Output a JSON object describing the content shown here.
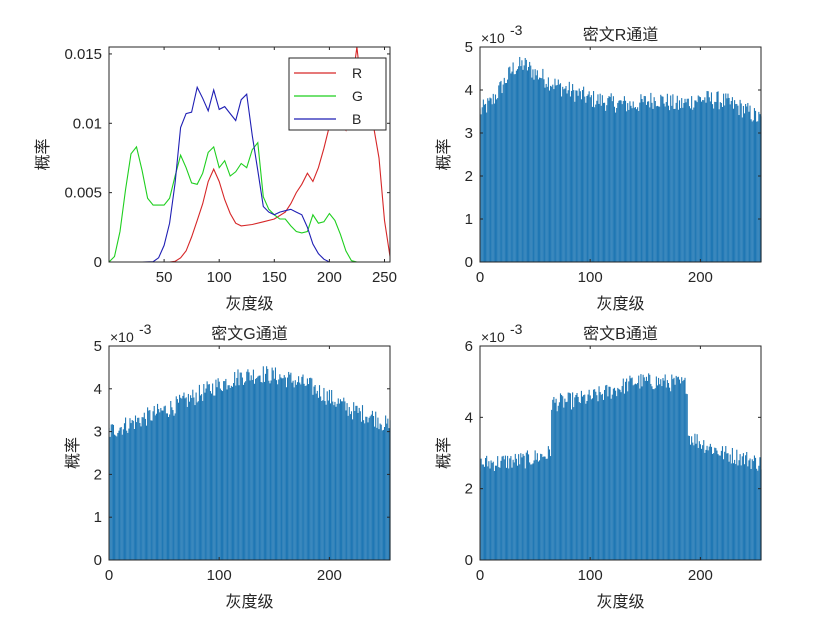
{
  "chart_data": [
    {
      "id": "hist-all",
      "type": "line",
      "title": "",
      "xlabel": "灰度级",
      "ylabel": "概率",
      "xlim": [
        0,
        255
      ],
      "ylim": [
        0,
        0.0155
      ],
      "xticks": [
        50,
        100,
        150,
        200,
        250
      ],
      "xtick_labels": [
        "50",
        "100",
        "150",
        "200",
        "250"
      ],
      "yticks": [
        0,
        0.005,
        0.01,
        0.015
      ],
      "ytick_labels": [
        "0",
        "0.005",
        "0.01",
        "0.015"
      ],
      "grid": false,
      "legend": {
        "position": "top-right",
        "entries": [
          {
            "name": "R",
            "color": "#d62728"
          },
          {
            "name": "G",
            "color": "#1fcf1f"
          },
          {
            "name": "B",
            "color": "#1f1fb4"
          }
        ]
      },
      "series": [
        {
          "name": "R",
          "color": "#d62728",
          "x": [
            0,
            10,
            20,
            30,
            40,
            50,
            55,
            60,
            65,
            70,
            75,
            80,
            85,
            90,
            95,
            100,
            105,
            110,
            115,
            120,
            130,
            140,
            150,
            160,
            165,
            170,
            175,
            180,
            185,
            190,
            195,
            200,
            205,
            210,
            215,
            220,
            225,
            230,
            235,
            240,
            245,
            250,
            255
          ],
          "y": [
            0,
            0,
            0,
            0,
            0,
            0,
            0,
            5e-05,
            0.0003,
            0.0008,
            0.0018,
            0.003,
            0.0042,
            0.0058,
            0.0067,
            0.0058,
            0.0045,
            0.0035,
            0.0028,
            0.0026,
            0.0027,
            0.0029,
            0.0031,
            0.0036,
            0.0042,
            0.005,
            0.0056,
            0.0064,
            0.0058,
            0.0068,
            0.0082,
            0.0098,
            0.0105,
            0.0101,
            0.0095,
            0.0125,
            0.0155,
            0.0118,
            0.0108,
            0.0098,
            0.0075,
            0.003,
            0.0004
          ]
        },
        {
          "name": "G",
          "color": "#1fcf1f",
          "x": [
            0,
            5,
            10,
            15,
            20,
            25,
            30,
            35,
            40,
            45,
            50,
            55,
            60,
            65,
            70,
            75,
            80,
            85,
            90,
            95,
            100,
            105,
            110,
            115,
            120,
            125,
            130,
            135,
            140,
            145,
            150,
            155,
            160,
            165,
            170,
            175,
            180,
            185,
            190,
            195,
            200,
            205,
            210,
            215,
            220,
            225,
            255
          ],
          "y": [
            0,
            0.0004,
            0.0022,
            0.0052,
            0.0078,
            0.0083,
            0.0066,
            0.0046,
            0.0041,
            0.0041,
            0.0041,
            0.0046,
            0.0062,
            0.0077,
            0.0068,
            0.0057,
            0.0056,
            0.0064,
            0.0079,
            0.0083,
            0.0068,
            0.0073,
            0.0062,
            0.0065,
            0.0071,
            0.0068,
            0.0081,
            0.0086,
            0.0047,
            0.0038,
            0.0034,
            0.0031,
            0.0031,
            0.0026,
            0.0022,
            0.0021,
            0.0022,
            0.0034,
            0.0028,
            0.0029,
            0.0035,
            0.003,
            0.002,
            0.0008,
            0.0001,
            0,
            0
          ]
        },
        {
          "name": "B",
          "color": "#1f1fb4",
          "x": [
            0,
            30,
            40,
            45,
            50,
            55,
            60,
            65,
            70,
            75,
            80,
            85,
            90,
            95,
            100,
            105,
            110,
            115,
            120,
            125,
            130,
            135,
            140,
            145,
            150,
            155,
            160,
            165,
            170,
            175,
            180,
            185,
            190,
            195,
            200,
            205,
            210,
            255
          ],
          "y": [
            0,
            0,
            2e-05,
            0.0003,
            0.0012,
            0.0028,
            0.0057,
            0.0097,
            0.0107,
            0.0108,
            0.0126,
            0.0118,
            0.0109,
            0.0124,
            0.011,
            0.0112,
            0.0107,
            0.0102,
            0.0117,
            0.0121,
            0.0091,
            0.0066,
            0.004,
            0.0036,
            0.0034,
            0.0036,
            0.0037,
            0.0038,
            0.0036,
            0.0034,
            0.0025,
            0.0013,
            0.0006,
            0.0002,
            0,
            0,
            0,
            0
          ]
        }
      ]
    },
    {
      "id": "hist-r",
      "type": "bar",
      "title": "密文R通道",
      "xlabel": "灰度级",
      "ylabel": "概率",
      "exponent_label": "×10",
      "exponent_power": "-3",
      "color": "#1f77b4",
      "xlim": [
        0,
        255
      ],
      "ylim": [
        0,
        5
      ],
      "xticks": [
        0,
        100,
        200
      ],
      "xtick_labels": [
        "0",
        "100",
        "200"
      ],
      "yticks": [
        0,
        1,
        2,
        3,
        4,
        5
      ],
      "ytick_labels": [
        "0",
        "1",
        "2",
        "3",
        "4",
        "5"
      ],
      "profile_x": [
        0,
        10,
        20,
        30,
        40,
        50,
        70,
        100,
        120,
        140,
        160,
        180,
        200,
        220,
        240,
        255
      ],
      "profile_y": [
        3.5,
        3.7,
        4.1,
        4.5,
        4.6,
        4.4,
        4.1,
        3.8,
        3.7,
        3.65,
        3.8,
        3.65,
        3.8,
        3.75,
        3.55,
        3.3
      ],
      "noise": 0.22,
      "peak": 4.92
    },
    {
      "id": "hist-g",
      "type": "bar",
      "title": "密文G通道",
      "xlabel": "灰度级",
      "ylabel": "概率",
      "exponent_label": "×10",
      "exponent_power": "-3",
      "color": "#1f77b4",
      "xlim": [
        0,
        255
      ],
      "ylim": [
        0,
        5
      ],
      "xticks": [
        0,
        100,
        200
      ],
      "xtick_labels": [
        "0",
        "100",
        "200"
      ],
      "yticks": [
        0,
        1,
        2,
        3,
        4,
        5
      ],
      "ytick_labels": [
        "0",
        "1",
        "2",
        "3",
        "4",
        "5"
      ],
      "profile_x": [
        0,
        20,
        40,
        60,
        80,
        100,
        120,
        140,
        160,
        180,
        200,
        220,
        240,
        255
      ],
      "profile_y": [
        3.0,
        3.2,
        3.4,
        3.6,
        3.85,
        4.1,
        4.3,
        4.35,
        4.25,
        4.1,
        3.8,
        3.5,
        3.35,
        3.1
      ],
      "noise": 0.22,
      "peak": 4.72
    },
    {
      "id": "hist-b",
      "type": "bar",
      "title": "密文B通道",
      "xlabel": "灰度级",
      "ylabel": "概率",
      "exponent_label": "×10",
      "exponent_power": "-3",
      "color": "#1f77b4",
      "xlim": [
        0,
        255
      ],
      "ylim": [
        0,
        6
      ],
      "xticks": [
        0,
        100,
        200
      ],
      "xtick_labels": [
        "0",
        "100",
        "200"
      ],
      "yticks": [
        0,
        2,
        4,
        6
      ],
      "ytick_labels": [
        "0",
        "2",
        "4",
        "6"
      ],
      "profile_x": [
        0,
        20,
        40,
        60,
        64,
        65,
        80,
        100,
        120,
        140,
        160,
        180,
        188,
        189,
        200,
        220,
        240,
        255
      ],
      "profile_y": [
        2.7,
        2.75,
        2.8,
        2.95,
        3.0,
        4.4,
        4.45,
        4.55,
        4.75,
        5.0,
        5.0,
        4.95,
        4.9,
        3.5,
        3.3,
        3.0,
        2.85,
        2.7
      ],
      "noise": 0.25,
      "peak": 5.3
    }
  ]
}
